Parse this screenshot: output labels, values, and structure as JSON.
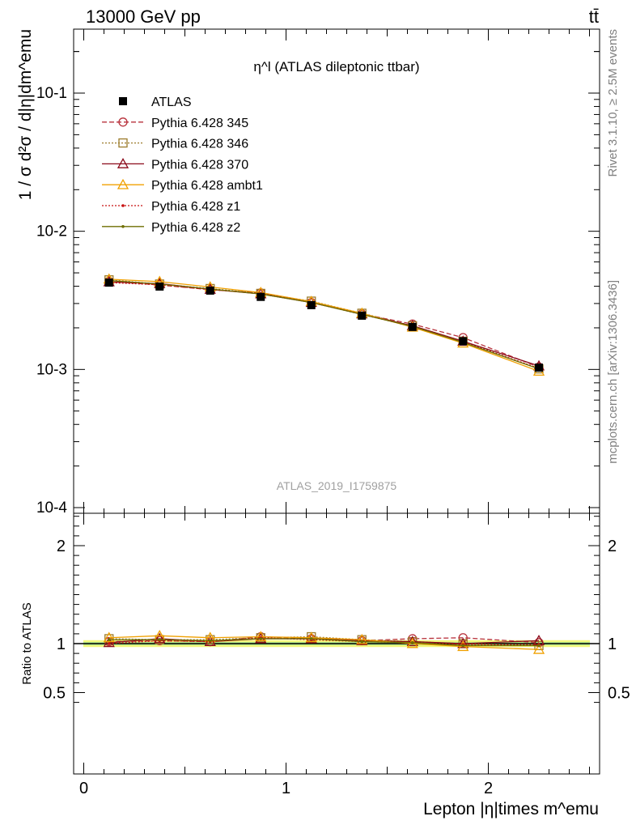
{
  "header": {
    "energy": "13000 GeV pp",
    "process": "tt̄"
  },
  "side": {
    "rivet": "Rivet 3.1.10, ≥ 2.5M events",
    "mcplots": "mcplots.cern.ch [arXiv:1306.3436]"
  },
  "chart_data": [
    {
      "type": "line",
      "panel": "main",
      "title": "η^l (ATLAS dileptonic ttbar)",
      "ylabel": "1 / σ d²σ / d|η|dm^emu",
      "yscale": "log",
      "ylim": [
        0.0001,
        0.3
      ],
      "xlim": [
        -0.05,
        2.55
      ],
      "watermark": "ATLAS_2019_I1759875",
      "ytick_labels": [
        "10^-4",
        "10^-3",
        "10^-2",
        "10^-1"
      ],
      "legend_position": "top-left",
      "x": [
        0.125,
        0.375,
        0.625,
        0.875,
        1.125,
        1.375,
        1.625,
        1.875,
        2.25
      ],
      "data": {
        "name": "ATLAS",
        "color": "#000000",
        "values": [
          0.00425,
          0.00398,
          0.00372,
          0.00335,
          0.00292,
          0.00245,
          0.00203,
          0.0016,
          0.00103
        ]
      },
      "series": [
        {
          "name": "Pythia 6.428 345",
          "color": "#b8323c",
          "dash": "6,3",
          "marker": "circle",
          "values": [
            0.00435,
            0.00408,
            0.00378,
            0.00358,
            0.00305,
            0.00252,
            0.00213,
            0.0017,
            0.00104
          ]
        },
        {
          "name": "Pythia 6.428 346",
          "color": "#9c7c2c",
          "dash": "2,2",
          "marker": "square",
          "values": [
            0.00445,
            0.00415,
            0.00385,
            0.00355,
            0.00312,
            0.00255,
            0.00207,
            0.0016,
            0.00101
          ]
        },
        {
          "name": "Pythia 6.428 370",
          "color": "#8b0a1a",
          "dash": "",
          "marker": "triangle",
          "values": [
            0.0043,
            0.00418,
            0.0038,
            0.00352,
            0.00305,
            0.00252,
            0.00207,
            0.0016,
            0.00106
          ]
        },
        {
          "name": "Pythia 6.428 ambt1",
          "color": "#f0a000",
          "dash": "",
          "marker": "triangle",
          "values": [
            0.0045,
            0.00432,
            0.00395,
            0.0036,
            0.0031,
            0.00255,
            0.00202,
            0.00155,
            0.00097
          ]
        },
        {
          "name": "Pythia 6.428 z1",
          "color": "#c81010",
          "dash": "2,2",
          "marker": "dot",
          "values": [
            0.00425,
            0.0041,
            0.00378,
            0.00355,
            0.00305,
            0.0025,
            0.00205,
            0.00158,
            0.00102
          ]
        },
        {
          "name": "Pythia 6.428 z2",
          "color": "#6e6e00",
          "dash": "",
          "marker": "dot",
          "values": [
            0.0044,
            0.00415,
            0.00382,
            0.00352,
            0.00305,
            0.0025,
            0.00205,
            0.00157,
            0.00101
          ]
        }
      ]
    },
    {
      "type": "line",
      "panel": "ratio",
      "ylabel": "Ratio to ATLAS",
      "xlabel": "Lepton |η|times m^emu",
      "ylim": [
        0.4,
        2.3
      ],
      "xlim": [
        -0.05,
        2.55
      ],
      "ytick_labels": [
        "0.5",
        "1",
        "2"
      ],
      "xtick_labels": [
        "0",
        "1",
        "2"
      ],
      "band": {
        "inner": [
          0.985,
          1.015
        ],
        "outer": [
          0.965,
          1.035
        ]
      },
      "x": [
        0.125,
        0.375,
        0.625,
        0.875,
        1.125,
        1.375,
        1.625,
        1.875,
        2.25
      ],
      "series": [
        {
          "name": "Pythia 6.428 345",
          "values": [
            1.02,
            1.03,
            1.02,
            1.07,
            1.05,
            1.03,
            1.05,
            1.06,
            1.01
          ]
        },
        {
          "name": "Pythia 6.428 346",
          "values": [
            1.05,
            1.04,
            1.04,
            1.06,
            1.07,
            1.04,
            1.02,
            1.0,
            0.98
          ]
        },
        {
          "name": "Pythia 6.428 370",
          "values": [
            1.01,
            1.05,
            1.02,
            1.05,
            1.05,
            1.03,
            1.02,
            1.0,
            1.03
          ]
        },
        {
          "name": "Pythia 6.428 ambt1",
          "values": [
            1.06,
            1.08,
            1.06,
            1.07,
            1.06,
            1.04,
            1.0,
            0.97,
            0.94
          ]
        },
        {
          "name": "Pythia 6.428 z1",
          "values": [
            1.0,
            1.03,
            1.02,
            1.06,
            1.04,
            1.02,
            1.01,
            0.99,
            0.99
          ]
        },
        {
          "name": "Pythia 6.428 z2",
          "values": [
            1.04,
            1.04,
            1.03,
            1.05,
            1.05,
            1.02,
            1.01,
            0.98,
            0.98
          ]
        }
      ]
    }
  ]
}
